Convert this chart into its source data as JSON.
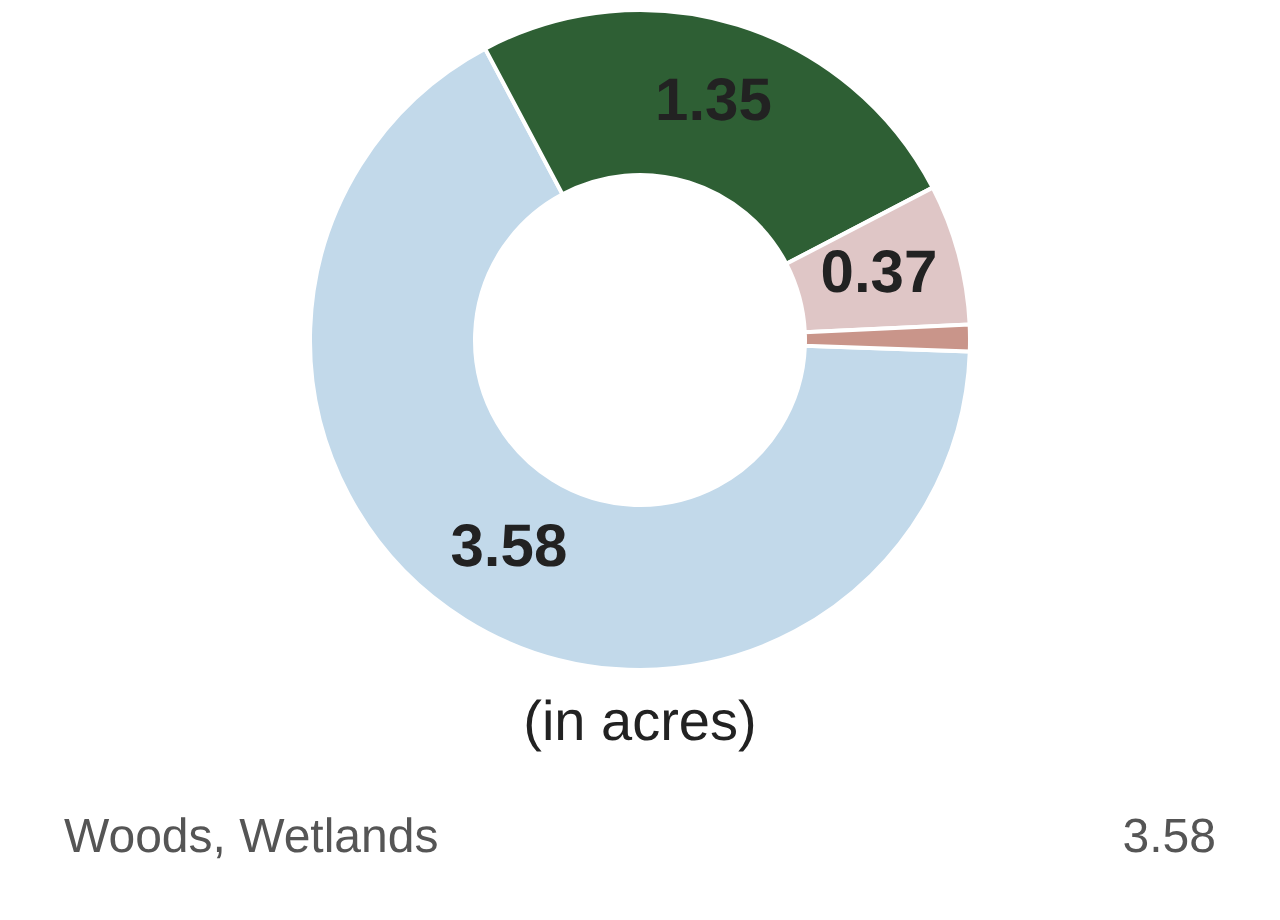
{
  "chart_data": {
    "type": "donut",
    "categories": [
      null,
      null,
      null,
      null
    ],
    "values": [
      3.58,
      1.35,
      0.37,
      0.07
    ],
    "colors": [
      "#c2d9ea",
      "#2e5f34",
      "#dfc6c6",
      "#c9958a"
    ],
    "value_labels": [
      "3.58",
      "1.35",
      "0.37",
      null
    ],
    "annotations": [
      "(in acres)",
      "Woods, Wetlands",
      "3.58"
    ]
  }
}
